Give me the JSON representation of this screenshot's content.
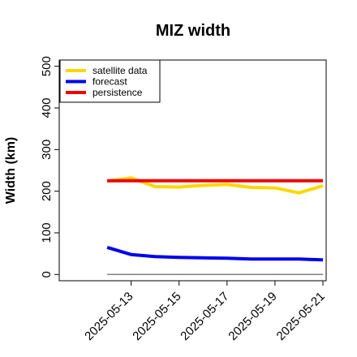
{
  "chart_data": {
    "type": "line",
    "title": "MIZ width",
    "xlabel": "",
    "ylabel": "Width (km)",
    "x": [
      "2025-05-12",
      "2025-05-13",
      "2025-05-14",
      "2025-05-15",
      "2025-05-16",
      "2025-05-17",
      "2025-05-18",
      "2025-05-19",
      "2025-05-20",
      "2025-05-21"
    ],
    "xticks": [
      "2025-05-13",
      "2025-05-15",
      "2025-05-17",
      "2025-05-19",
      "2025-05-21"
    ],
    "highlighted_xtick": "2025-05-13",
    "xlim": [
      "2025-05-10",
      "2025-05-21"
    ],
    "ylim": [
      -15,
      515
    ],
    "yticks": [
      0,
      100,
      200,
      300,
      400,
      500
    ],
    "reference_line": 0,
    "series": [
      {
        "name": "satellite data",
        "color": "#FFD700",
        "values": [
          224,
          232,
          211,
          210,
          214,
          216,
          209,
          208,
          196,
          213
        ]
      },
      {
        "name": "forecast",
        "color": "#0000EE",
        "values": [
          65,
          48,
          43,
          41,
          40,
          39,
          37,
          37,
          37,
          35
        ]
      },
      {
        "name": "persistence",
        "color": "#EE0000",
        "values": [
          225,
          225,
          225,
          225,
          225,
          225,
          225,
          225,
          225,
          225
        ]
      }
    ],
    "legend_position": "top-left",
    "colors": {
      "highlight_tick": "#228B22",
      "reference": "#808080"
    }
  }
}
